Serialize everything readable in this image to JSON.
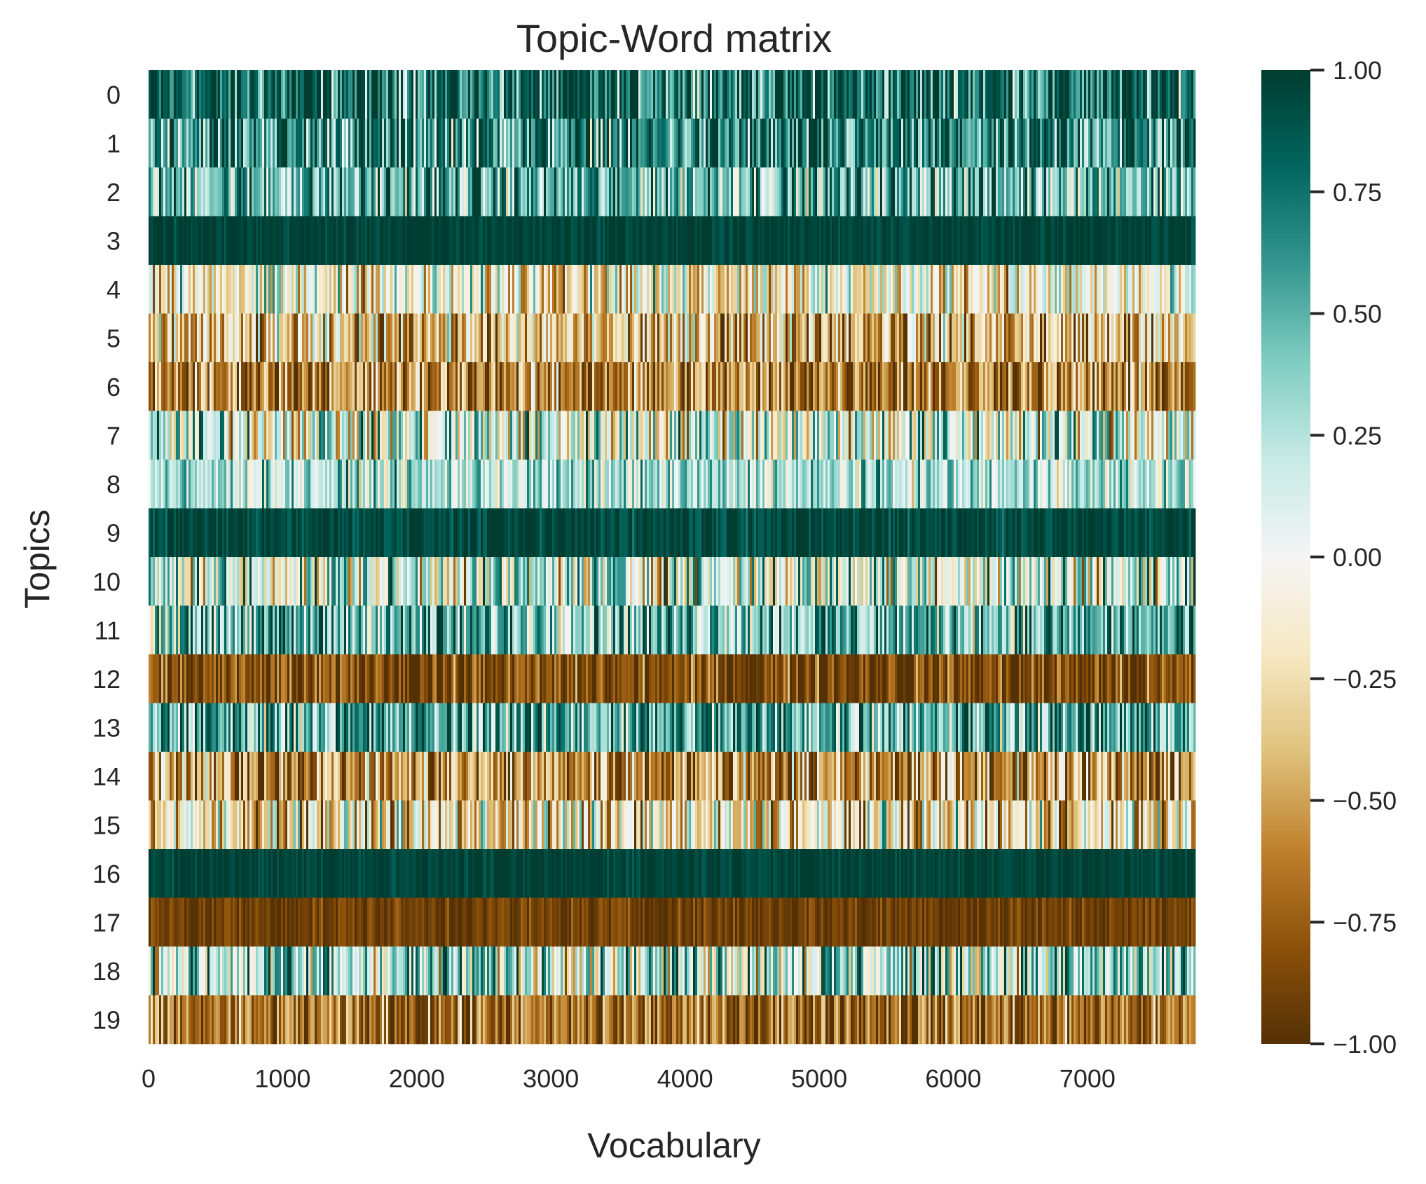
{
  "chart_data": {
    "type": "heatmap",
    "title": "Topic-Word matrix",
    "xlabel": "Vocabulary",
    "ylabel": "Topics",
    "x_range": [
      0,
      7800
    ],
    "x_ticks": [
      0,
      1000,
      2000,
      3000,
      4000,
      5000,
      6000,
      7000
    ],
    "y_categories": [
      "0",
      "1",
      "2",
      "3",
      "4",
      "5",
      "6",
      "7",
      "8",
      "9",
      "10",
      "11",
      "12",
      "13",
      "14",
      "15",
      "16",
      "17",
      "18",
      "19"
    ],
    "value_range": [
      -1.0,
      1.0
    ],
    "colormap": "BrBG",
    "colormap_stops": [
      "#543005",
      "#8c510a",
      "#bf812d",
      "#dfc27d",
      "#f6e8c3",
      "#f5f5f5",
      "#c7eae5",
      "#80cdc1",
      "#35978f",
      "#01665e",
      "#003c30"
    ],
    "colorbar_ticks": [
      "1.00",
      "0.75",
      "0.50",
      "0.25",
      "0.00",
      "−0.25",
      "−0.50",
      "−0.75",
      "−1.00"
    ],
    "colorbar_tick_values": [
      1.0,
      0.75,
      0.5,
      0.25,
      0.0,
      -0.25,
      -0.5,
      -0.75,
      -1.0
    ],
    "row_mean_values": [
      0.8,
      0.65,
      0.5,
      0.97,
      -0.1,
      -0.4,
      -0.6,
      0.1,
      0.25,
      0.95,
      0.15,
      0.5,
      -0.85,
      0.55,
      -0.55,
      -0.25,
      0.97,
      -0.9,
      0.3,
      -0.7
    ],
    "row_variability": [
      0.35,
      0.35,
      0.35,
      0.06,
      0.35,
      0.35,
      0.3,
      0.45,
      0.25,
      0.1,
      0.45,
      0.35,
      0.2,
      0.35,
      0.35,
      0.4,
      0.06,
      0.1,
      0.45,
      0.25
    ]
  }
}
